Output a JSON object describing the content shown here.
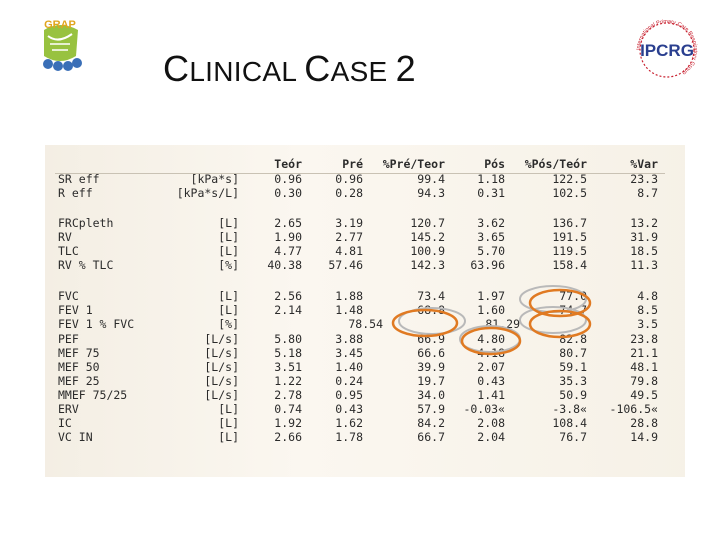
{
  "slide": {
    "title_first_letters": [
      "C",
      "C"
    ],
    "title_rest": [
      "LINICAL ",
      "ASE "
    ],
    "title_number": "2"
  },
  "logos": {
    "left": "GRAP",
    "right": "IPCRG",
    "right_ring_text": "International Primary Care Respiratory Group"
  },
  "table": {
    "headers": [
      "Teór",
      "Pré",
      "%Pré/Teor",
      "Pós",
      "%Pós/Teór",
      "%Var"
    ],
    "rows": [
      {
        "label": "SR eff",
        "unit": "[kPa*s]",
        "v": [
          "0.96",
          "0.96",
          "99.4",
          "1.18",
          "122.5",
          "23.3"
        ]
      },
      {
        "label": "R eff",
        "unit": "[kPa*s/L]",
        "v": [
          "0.30",
          "0.28",
          "94.3",
          "0.31",
          "102.5",
          "8.7"
        ]
      },
      {
        "label": "FRCpleth",
        "unit": "[L]",
        "v": [
          "2.65",
          "3.19",
          "120.7",
          "3.62",
          "136.7",
          "13.2"
        ]
      },
      {
        "label": "RV",
        "unit": "[L]",
        "v": [
          "1.90",
          "2.77",
          "145.2",
          "3.65",
          "191.5",
          "31.9"
        ]
      },
      {
        "label": "TLC",
        "unit": "[L]",
        "v": [
          "4.77",
          "4.81",
          "100.9",
          "5.70",
          "119.5",
          "18.5"
        ]
      },
      {
        "label": "RV % TLC",
        "unit": "[%]",
        "v": [
          "40.38",
          "57.46",
          "142.3",
          "63.96",
          "158.4",
          "11.3"
        ]
      },
      {
        "label": "FVC",
        "unit": "[L]",
        "v": [
          "2.56",
          "1.88",
          "73.4",
          "1.97",
          "77.0",
          "4.8"
        ]
      },
      {
        "label": "FEV 1",
        "unit": "[L]",
        "v": [
          "2.14",
          "1.48",
          "68.8",
          "1.60",
          "74.7",
          "8.5"
        ]
      },
      {
        "label": "FEV 1 % FVC",
        "unit": "[%]",
        "v": [
          "",
          "78.54",
          "",
          "81.29",
          "",
          "3.5"
        ]
      },
      {
        "label": "PEF",
        "unit": "[L/s]",
        "v": [
          "5.80",
          "3.88",
          "66.9",
          "4.80",
          "82.8",
          "23.8"
        ]
      },
      {
        "label": "MEF 75",
        "unit": "[L/s]",
        "v": [
          "5.18",
          "3.45",
          "66.6",
          "4.18",
          "80.7",
          "21.1"
        ]
      },
      {
        "label": "MEF 50",
        "unit": "[L/s]",
        "v": [
          "3.51",
          "1.40",
          "39.9",
          "2.07",
          "59.1",
          "48.1"
        ]
      },
      {
        "label": "MEF 25",
        "unit": "[L/s]",
        "v": [
          "1.22",
          "0.24",
          "19.7",
          "0.43",
          "35.3",
          "79.8"
        ]
      },
      {
        "label": "MMEF 75/25",
        "unit": "[L/s]",
        "v": [
          "2.78",
          "0.95",
          "34.0",
          "1.41",
          "50.9",
          "49.5"
        ]
      },
      {
        "label": "ERV",
        "unit": "[L]",
        "v": [
          "0.74",
          "0.43",
          "57.9",
          "-0.03«",
          "-3.8«",
          "-106.5«"
        ]
      },
      {
        "label": "IC",
        "unit": "[L]",
        "v": [
          "1.92",
          "1.62",
          "84.2",
          "2.08",
          "108.4",
          "28.8"
        ]
      },
      {
        "label": "VC IN",
        "unit": "[L]",
        "v": [
          "2.66",
          "1.78",
          "66.7",
          "2.04",
          "76.7",
          "14.9"
        ]
      }
    ]
  },
  "colors": {
    "circle": "#e07a22",
    "ghost_circle": "#b9b9b9",
    "logo_green": "#8dbb2b",
    "logo_blue": "#3a6fb7",
    "ipcrg_red": "#c8202f",
    "ipcrg_blue": "#2a3f8f"
  }
}
